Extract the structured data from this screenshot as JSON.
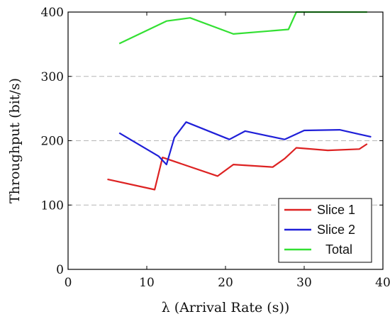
{
  "chart_data": {
    "type": "line",
    "title": "",
    "xlabel": "λ (Arrival Rate (s))",
    "ylabel": "Throughput (bit/s)",
    "xlim": [
      0,
      40
    ],
    "ylim": [
      0,
      400
    ],
    "xticks": [
      0,
      10,
      20,
      30,
      40
    ],
    "yticks": [
      0,
      100,
      200,
      300,
      400
    ],
    "grid": "horizontal dashed",
    "legend_position": "bottom-right",
    "series": [
      {
        "name": "Slice 1",
        "color": "#dd2222",
        "x": [
          5,
          11,
          12,
          19,
          21,
          26,
          27.5,
          29,
          33,
          37,
          38
        ],
        "y": [
          140,
          124,
          174,
          145,
          163,
          159,
          172,
          189,
          185,
          187,
          195
        ]
      },
      {
        "name": "Slice 2",
        "color": "#1f1fd8",
        "x": [
          6.5,
          11.5,
          12.5,
          13.5,
          15,
          20.5,
          22.5,
          27.5,
          30,
          34.5,
          38.5
        ],
        "y": [
          212,
          176,
          163,
          205,
          229,
          202,
          215,
          202,
          216,
          217,
          206
        ]
      },
      {
        "name": "Total",
        "color": "#33e033",
        "x": [
          6.5,
          12.5,
          15.5,
          21,
          28,
          29,
          30,
          38
        ],
        "y": [
          351,
          386,
          391,
          366,
          373,
          400,
          400,
          400
        ]
      }
    ]
  }
}
